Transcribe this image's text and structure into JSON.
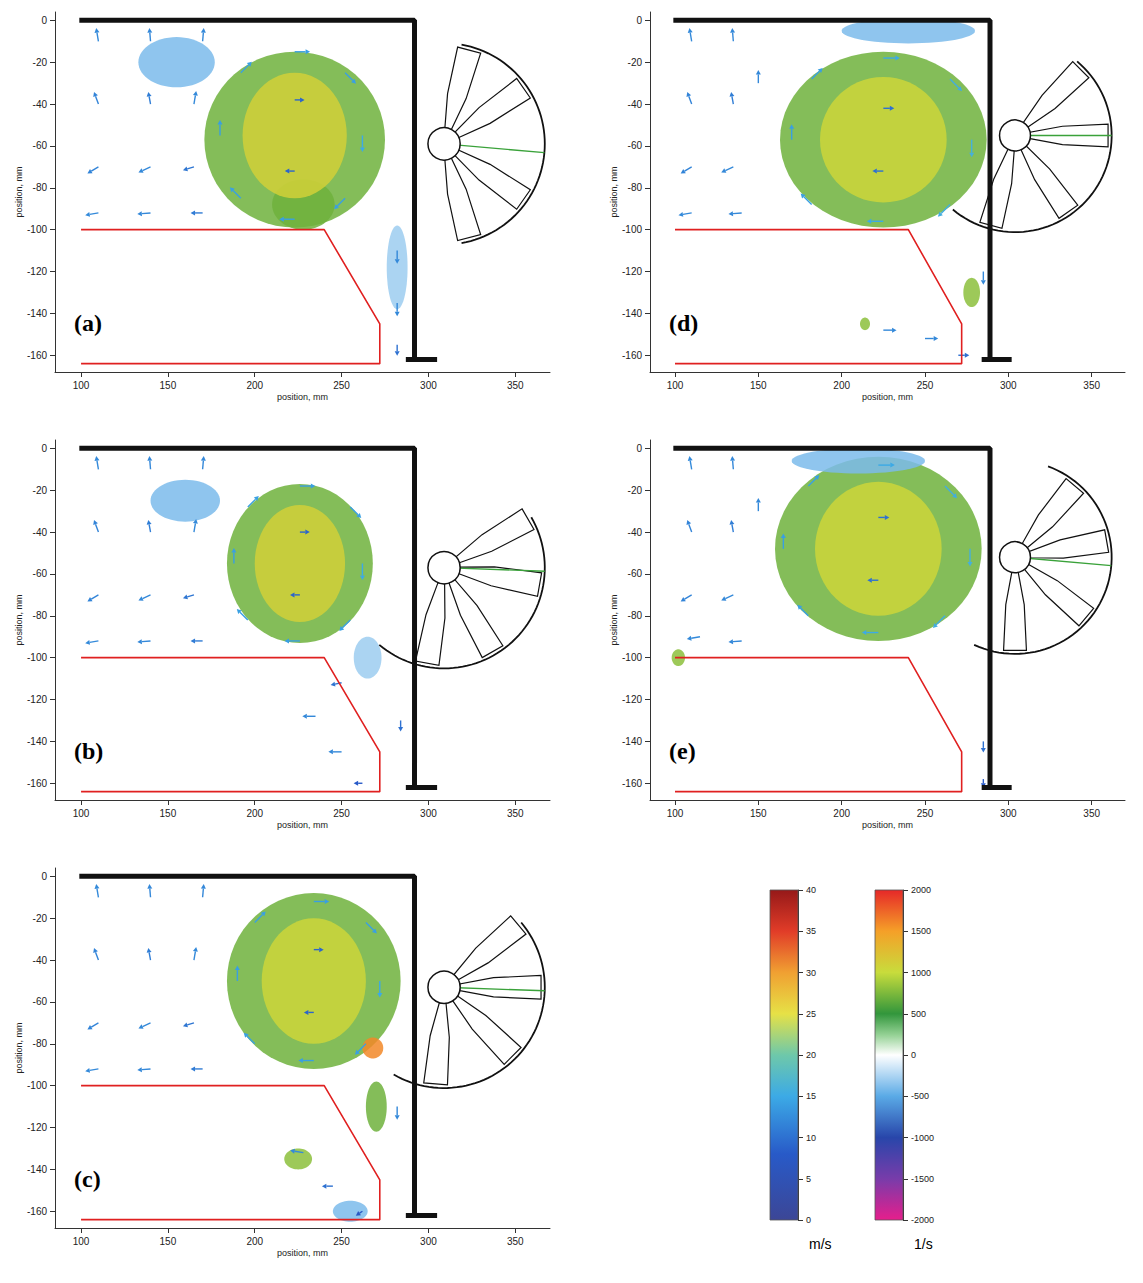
{
  "chart_data": [
    {
      "type": "vector_field",
      "panel": "(a)",
      "x_label": "position, mm",
      "y_label": "position, mm",
      "xlim": [
        85,
        370
      ],
      "ylim": [
        -168,
        4
      ],
      "xticks": [
        100,
        150,
        200,
        250,
        300,
        350
      ],
      "yticks": [
        0,
        -20,
        -40,
        -60,
        -80,
        -100,
        -120,
        -140,
        -160
      ],
      "grid": false,
      "outline": [
        [
          100,
          -100
        ],
        [
          240,
          -100
        ],
        [
          272,
          -145
        ],
        [
          272,
          -164
        ],
        [
          100,
          -164
        ]
      ],
      "walls": [
        [
          [
            99,
            0
          ],
          [
            292,
            0
          ],
          [
            292,
            -162
          ]
        ],
        [
          [
            287,
            -162
          ],
          [
            305,
            -162
          ]
        ]
      ],
      "rotor": {
        "hub": [
          309,
          -59
        ],
        "radius": 58,
        "arc_angles": [
          80,
          -80
        ],
        "blade_angles": [
          75,
          35,
          -35,
          -75
        ],
        "indicator_angle": -5
      },
      "vorticity_regions": [
        [
          223,
          -57,
          52,
          42,
          700
        ],
        [
          228,
          -88,
          18,
          12,
          700
        ],
        [
          223,
          -55,
          30,
          30,
          1100
        ],
        [
          155,
          -20,
          22,
          12,
          -400
        ],
        [
          282,
          -118,
          6,
          20,
          -300
        ]
      ],
      "vectors": [
        [
          110,
          -10,
          -2,
          12
        ],
        [
          140,
          -10,
          -1,
          12
        ],
        [
          170,
          -10,
          1,
          12
        ],
        [
          110,
          -40,
          -4,
          11
        ],
        [
          140,
          -40,
          -2,
          11
        ],
        [
          165,
          -40,
          2,
          12
        ],
        [
          110,
          -70,
          -10,
          -6
        ],
        [
          140,
          -70,
          -11,
          -5
        ],
        [
          165,
          -70,
          -10,
          -3
        ],
        [
          110,
          -92,
          -12,
          -2
        ],
        [
          140,
          -92,
          -12,
          -1
        ],
        [
          170,
          -92,
          -11,
          0
        ],
        [
          223,
          -15,
          14,
          0
        ],
        [
          262,
          -55,
          0,
          -15
        ],
        [
          223,
          -95,
          -14,
          0
        ],
        [
          180,
          -55,
          0,
          14
        ],
        [
          252,
          -25,
          10,
          -10
        ],
        [
          252,
          -85,
          -10,
          -10
        ],
        [
          192,
          -85,
          -10,
          10
        ],
        [
          192,
          -25,
          10,
          10
        ],
        [
          223,
          -38,
          9,
          0
        ],
        [
          223,
          -72,
          -9,
          0
        ],
        [
          282,
          -110,
          0,
          -12
        ],
        [
          282,
          -135,
          0,
          -12
        ],
        [
          282,
          -155,
          0,
          -10
        ]
      ]
    },
    {
      "type": "vector_field",
      "panel": "(b)",
      "x_label": "position, mm",
      "y_label": "position, mm",
      "xlim": [
        85,
        370
      ],
      "ylim": [
        -168,
        4
      ],
      "xticks": [
        100,
        150,
        200,
        250,
        300,
        350
      ],
      "yticks": [
        0,
        -20,
        -40,
        -60,
        -80,
        -100,
        -120,
        -140,
        -160
      ],
      "grid": false,
      "outline": [
        [
          100,
          -100
        ],
        [
          240,
          -100
        ],
        [
          272,
          -145
        ],
        [
          272,
          -164
        ],
        [
          100,
          -164
        ]
      ],
      "walls": [
        [
          [
            99,
            0
          ],
          [
            292,
            0
          ],
          [
            292,
            -162
          ]
        ],
        [
          [
            287,
            -162
          ],
          [
            305,
            -162
          ]
        ]
      ],
      "rotor": {
        "hub": [
          309,
          -57
        ],
        "radius": 58,
        "arc_angles": [
          30,
          -130
        ],
        "blade_angles": [
          30,
          -10,
          -60,
          -100
        ],
        "indicator_angle": -2
      },
      "vorticity_regions": [
        [
          226,
          -55,
          42,
          38,
          700
        ],
        [
          226,
          -55,
          26,
          28,
          1100
        ],
        [
          160,
          -25,
          20,
          10,
          -400
        ],
        [
          265,
          -100,
          8,
          10,
          -300
        ]
      ],
      "vectors": [
        [
          110,
          -10,
          -2,
          12
        ],
        [
          140,
          -10,
          -1,
          12
        ],
        [
          170,
          -10,
          1,
          12
        ],
        [
          110,
          -40,
          -4,
          11
        ],
        [
          140,
          -40,
          -2,
          11
        ],
        [
          165,
          -40,
          2,
          12
        ],
        [
          110,
          -70,
          -10,
          -6
        ],
        [
          140,
          -70,
          -11,
          -5
        ],
        [
          165,
          -70,
          -10,
          -3
        ],
        [
          110,
          -92,
          -12,
          -2
        ],
        [
          140,
          -92,
          -12,
          -1
        ],
        [
          170,
          -92,
          -11,
          0
        ],
        [
          226,
          -18,
          14,
          0
        ],
        [
          262,
          -55,
          0,
          -15
        ],
        [
          226,
          -92,
          -14,
          0
        ],
        [
          188,
          -55,
          0,
          14
        ],
        [
          255,
          -28,
          10,
          -10
        ],
        [
          255,
          -82,
          -10,
          -10
        ],
        [
          196,
          -82,
          -10,
          10
        ],
        [
          196,
          -28,
          10,
          10
        ],
        [
          226,
          -40,
          9,
          0
        ],
        [
          226,
          -70,
          -9,
          0
        ],
        [
          250,
          -112,
          -10,
          -2
        ],
        [
          235,
          -128,
          -12,
          0
        ],
        [
          250,
          -145,
          -12,
          0
        ],
        [
          262,
          -160,
          -8,
          0
        ],
        [
          284,
          -130,
          0,
          -10
        ]
      ]
    },
    {
      "type": "vector_field",
      "panel": "(c)",
      "x_label": "position, mm",
      "y_label": "position, mm",
      "xlim": [
        85,
        370
      ],
      "ylim": [
        -168,
        4
      ],
      "xticks": [
        100,
        150,
        200,
        250,
        300,
        350
      ],
      "yticks": [
        0,
        -20,
        -40,
        -60,
        -80,
        -100,
        -120,
        -140,
        -160
      ],
      "grid": false,
      "outline": [
        [
          100,
          -100
        ],
        [
          240,
          -100
        ],
        [
          272,
          -145
        ],
        [
          272,
          -164
        ],
        [
          100,
          -164
        ]
      ],
      "walls": [
        [
          [
            99,
            0
          ],
          [
            292,
            0
          ],
          [
            292,
            -162
          ]
        ],
        [
          [
            287,
            -162
          ],
          [
            305,
            -162
          ]
        ]
      ],
      "rotor": {
        "hub": [
          309,
          -53
        ],
        "radius": 58,
        "arc_angles": [
          40,
          -120
        ],
        "blade_angles": [
          40,
          0,
          -45,
          -95
        ],
        "indicator_angle": -2
      },
      "vorticity_regions": [
        [
          234,
          -50,
          50,
          42,
          700
        ],
        [
          234,
          -50,
          30,
          30,
          1050
        ],
        [
          268,
          -82,
          6,
          5,
          1600
        ],
        [
          270,
          -110,
          6,
          12,
          700
        ],
        [
          225,
          -135,
          8,
          5,
          800
        ],
        [
          255,
          -160,
          10,
          5,
          -400
        ]
      ],
      "vectors": [
        [
          110,
          -10,
          -2,
          12
        ],
        [
          140,
          -10,
          -1,
          12
        ],
        [
          170,
          -10,
          1,
          12
        ],
        [
          110,
          -40,
          -4,
          11
        ],
        [
          140,
          -40,
          -2,
          11
        ],
        [
          165,
          -40,
          2,
          12
        ],
        [
          110,
          -70,
          -10,
          -6
        ],
        [
          140,
          -70,
          -11,
          -5
        ],
        [
          165,
          -70,
          -10,
          -3
        ],
        [
          110,
          -92,
          -12,
          -2
        ],
        [
          140,
          -92,
          -12,
          -1
        ],
        [
          170,
          -92,
          -11,
          0
        ],
        [
          234,
          -12,
          14,
          0
        ],
        [
          272,
          -50,
          0,
          -15
        ],
        [
          234,
          -88,
          -14,
          0
        ],
        [
          190,
          -50,
          0,
          14
        ],
        [
          264,
          -22,
          10,
          -10
        ],
        [
          264,
          -80,
          -10,
          -10
        ],
        [
          200,
          -80,
          -10,
          10
        ],
        [
          200,
          -22,
          10,
          10
        ],
        [
          234,
          -35,
          9,
          0
        ],
        [
          234,
          -65,
          -9,
          0
        ],
        [
          228,
          -132,
          -12,
          2
        ],
        [
          245,
          -148,
          -10,
          0
        ],
        [
          262,
          -160,
          -6,
          -4
        ],
        [
          282,
          -110,
          0,
          -12
        ]
      ]
    },
    {
      "type": "vector_field",
      "panel": "(d)",
      "x_label": "position, mm",
      "y_label": "position, mm",
      "xlim": [
        85,
        370
      ],
      "ylim": [
        -168,
        4
      ],
      "xticks": [
        100,
        150,
        200,
        250,
        300,
        350
      ],
      "yticks": [
        0,
        -20,
        -40,
        -60,
        -80,
        -100,
        -120,
        -140,
        -160
      ],
      "grid": false,
      "outline": [
        [
          100,
          -100
        ],
        [
          240,
          -100
        ],
        [
          272,
          -145
        ],
        [
          272,
          -164
        ],
        [
          100,
          -164
        ]
      ],
      "walls": [
        [
          [
            99,
            0
          ],
          [
            289,
            0
          ],
          [
            289,
            -162
          ]
        ],
        [
          [
            284,
            -162
          ],
          [
            302,
            -162
          ]
        ]
      ],
      "rotor": {
        "hub": [
          304,
          -55
        ],
        "radius": 58,
        "arc_angles": [
          50,
          -130
        ],
        "blade_angles": [
          45,
          0,
          -55,
          -105
        ],
        "indicator_angle": 0
      },
      "vorticity_regions": [
        [
          225,
          -57,
          62,
          42,
          700
        ],
        [
          225,
          -57,
          38,
          30,
          1050
        ],
        [
          240,
          -5,
          40,
          6,
          -400
        ],
        [
          278,
          -130,
          5,
          7,
          800
        ],
        [
          214,
          -145,
          3,
          3,
          800
        ]
      ],
      "vectors": [
        [
          110,
          -10,
          -2,
          12
        ],
        [
          135,
          -10,
          -1,
          12
        ],
        [
          150,
          -30,
          0,
          12
        ],
        [
          110,
          -40,
          -4,
          11
        ],
        [
          135,
          -40,
          -2,
          11
        ],
        [
          110,
          -70,
          -10,
          -6
        ],
        [
          135,
          -70,
          -11,
          -5
        ],
        [
          110,
          -92,
          -12,
          -2
        ],
        [
          140,
          -92,
          -12,
          -1
        ],
        [
          225,
          -18,
          15,
          0
        ],
        [
          278,
          -57,
          0,
          -16
        ],
        [
          225,
          -96,
          -15,
          0
        ],
        [
          170,
          -57,
          0,
          14
        ],
        [
          265,
          -28,
          11,
          -11
        ],
        [
          265,
          -88,
          -11,
          -11
        ],
        [
          182,
          -88,
          -10,
          10
        ],
        [
          182,
          -28,
          10,
          10
        ],
        [
          225,
          -42,
          10,
          0
        ],
        [
          225,
          -72,
          -10,
          0
        ],
        [
          225,
          -148,
          12,
          0
        ],
        [
          250,
          -152,
          12,
          0
        ],
        [
          270,
          -160,
          10,
          0
        ],
        [
          285,
          -120,
          0,
          -12
        ]
      ]
    },
    {
      "type": "vector_field",
      "panel": "(e)",
      "x_label": "position, mm",
      "y_label": "position, mm",
      "xlim": [
        85,
        370
      ],
      "ylim": [
        -168,
        4
      ],
      "xticks": [
        100,
        150,
        200,
        250,
        300,
        350
      ],
      "yticks": [
        0,
        -20,
        -40,
        -60,
        -80,
        -100,
        -120,
        -140,
        -160
      ],
      "grid": false,
      "outline": [
        [
          100,
          -100
        ],
        [
          240,
          -100
        ],
        [
          272,
          -145
        ],
        [
          272,
          -164
        ],
        [
          100,
          -164
        ]
      ],
      "walls": [
        [
          [
            99,
            0
          ],
          [
            289,
            0
          ],
          [
            289,
            -162
          ]
        ],
        [
          [
            284,
            -162
          ],
          [
            302,
            -162
          ]
        ]
      ],
      "rotor": {
        "hub": [
          304,
          -52
        ],
        "radius": 58,
        "arc_angles": [
          70,
          -115
        ],
        "blade_angles": [
          50,
          10,
          -40,
          -90
        ],
        "indicator_angle": -5
      },
      "vorticity_regions": [
        [
          222,
          -48,
          62,
          44,
          700
        ],
        [
          222,
          -48,
          38,
          32,
          1050
        ],
        [
          210,
          -6,
          40,
          6,
          -400
        ],
        [
          102,
          -100,
          4,
          4,
          800
        ]
      ],
      "vectors": [
        [
          110,
          -10,
          -2,
          12
        ],
        [
          135,
          -10,
          -1,
          12
        ],
        [
          150,
          -30,
          0,
          12
        ],
        [
          110,
          -40,
          -4,
          11
        ],
        [
          135,
          -40,
          -2,
          11
        ],
        [
          110,
          -70,
          -10,
          -6
        ],
        [
          135,
          -70,
          -11,
          -5
        ],
        [
          115,
          -90,
          -12,
          -2
        ],
        [
          140,
          -92,
          -12,
          -1
        ],
        [
          222,
          -8,
          15,
          0
        ],
        [
          277,
          -48,
          0,
          -16
        ],
        [
          222,
          -88,
          -15,
          0
        ],
        [
          165,
          -48,
          0,
          14
        ],
        [
          262,
          -18,
          11,
          -11
        ],
        [
          262,
          -80,
          -11,
          -11
        ],
        [
          180,
          -80,
          -10,
          10
        ],
        [
          180,
          -18,
          10,
          10
        ],
        [
          222,
          -33,
          10,
          0
        ],
        [
          222,
          -63,
          -10,
          0
        ],
        [
          285,
          -140,
          0,
          -10
        ],
        [
          285,
          -158,
          0,
          -8
        ]
      ]
    },
    {
      "type": "colorbar",
      "label": "m/s",
      "ylim": [
        0,
        40
      ],
      "yticks": [
        0,
        5,
        10,
        15,
        20,
        25,
        30,
        35,
        40
      ]
    },
    {
      "type": "colorbar",
      "label": "1/s",
      "ylim": [
        -2000,
        2000
      ],
      "yticks": [
        -2000,
        -1500,
        -1000,
        -500,
        0,
        500,
        1000,
        1500,
        2000
      ]
    }
  ]
}
